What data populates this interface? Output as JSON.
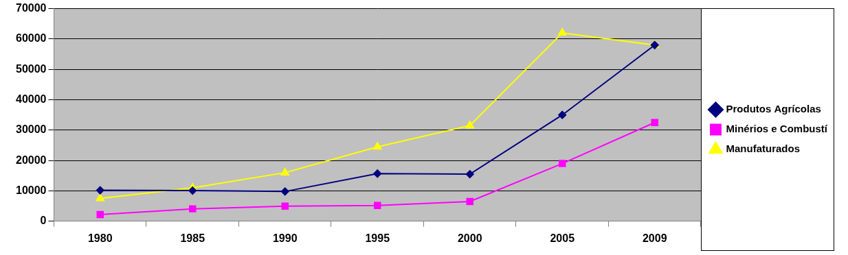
{
  "chart_data": {
    "type": "line",
    "categories": [
      "1980",
      "1985",
      "1990",
      "1995",
      "2000",
      "2005",
      "2009"
    ],
    "series": [
      {
        "name": "Produtos Agrícolas",
        "color": "#000080",
        "marker": "diamond",
        "values": [
          10200,
          10100,
          9800,
          15700,
          15500,
          35000,
          58000
        ]
      },
      {
        "name": "Minérios e Combustí",
        "color": "#FF00FF",
        "marker": "square",
        "values": [
          2200,
          4100,
          5000,
          5200,
          6500,
          19000,
          32500
        ]
      },
      {
        "name": "Manufaturados",
        "color": "#FFFF00",
        "marker": "triangle",
        "values": [
          7500,
          11000,
          16000,
          24500,
          31500,
          62000,
          58000
        ]
      }
    ],
    "ylim": [
      0,
      70000
    ],
    "yticks": [
      0,
      10000,
      20000,
      30000,
      40000,
      50000,
      60000,
      70000
    ],
    "grid": true,
    "legend": "right"
  }
}
